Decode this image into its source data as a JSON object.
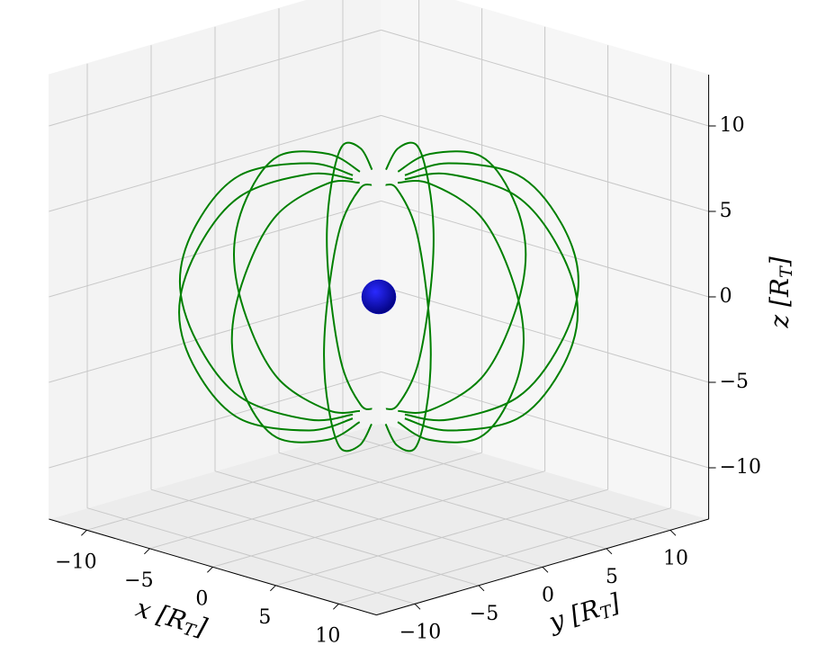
{
  "chart_data": {
    "type": "line3d",
    "xlabel": [
      "x [R",
      "T",
      "]"
    ],
    "ylabel": [
      "y [R",
      "T",
      "]"
    ],
    "zlabel": [
      "z [R",
      "T",
      "]"
    ],
    "xlim": [
      -13,
      13
    ],
    "ylim": [
      -13,
      13
    ],
    "zlim": [
      -13,
      13
    ],
    "xticks": [
      {
        "value": -10,
        "label": "−10"
      },
      {
        "value": -5,
        "label": "−5"
      },
      0,
      5,
      10
    ],
    "yticks": [
      {
        "value": -10,
        "label": "−10"
      },
      {
        "value": -5,
        "label": "−5"
      },
      0,
      5,
      10
    ],
    "zticks": [
      {
        "value": -10,
        "label": "−10"
      },
      {
        "value": -5,
        "label": "−5"
      },
      0,
      5,
      10
    ],
    "grid": true,
    "line_color": "#008000",
    "sphere": {
      "center": [
        0,
        0,
        0
      ],
      "radius": 1,
      "color": "#0000c8"
    },
    "series": [
      {
        "x": [
          1.5,
          4,
          8,
          10.5,
          11.5,
          10.5,
          8,
          4,
          1.5
        ],
        "y": [
          0,
          0,
          0,
          0,
          0,
          0,
          0,
          0,
          0
        ],
        "z": [
          -7,
          -7.5,
          -6.5,
          -3.5,
          0,
          3.5,
          6.5,
          7.5,
          7
        ]
      },
      {
        "x": [
          1.3,
          3.46,
          6.93,
          9.09,
          9.96,
          9.09,
          6.93,
          3.46,
          1.3
        ],
        "y": [
          0.75,
          2,
          4,
          5.25,
          5.75,
          5.25,
          4,
          2,
          0.75
        ],
        "z": [
          -7,
          -7.5,
          -6.5,
          -3.5,
          0,
          3.5,
          6.5,
          7.5,
          7
        ]
      },
      {
        "x": [
          0.75,
          2,
          4,
          5.25,
          5.75,
          5.25,
          4,
          2,
          0.75
        ],
        "y": [
          1.3,
          3.46,
          6.93,
          9.09,
          9.96,
          9.09,
          6.93,
          3.46,
          1.3
        ],
        "z": [
          -7,
          -7.5,
          -6.5,
          -3.5,
          0,
          3.5,
          6.5,
          7.5,
          7
        ]
      },
      {
        "x": [
          0,
          0,
          0,
          0,
          0,
          0,
          0,
          0,
          0
        ],
        "y": [
          1.5,
          4,
          8,
          10.5,
          11.5,
          10.5,
          8,
          4,
          1.5
        ],
        "z": [
          -7,
          -7.5,
          -6.5,
          -3.5,
          0,
          3.5,
          6.5,
          7.5,
          7
        ]
      },
      {
        "x": [
          -0.75,
          -2,
          -4,
          -5.25,
          -5.75,
          -5.25,
          -4,
          -2,
          -0.75
        ],
        "y": [
          1.3,
          3.46,
          6.93,
          9.09,
          9.96,
          9.09,
          6.93,
          3.46,
          1.3
        ],
        "z": [
          -7,
          -7.5,
          -6.5,
          -3.5,
          0,
          3.5,
          6.5,
          7.5,
          7
        ]
      },
      {
        "x": [
          -1.3,
          -3.46,
          -6.93,
          -9.09,
          -9.96,
          -9.09,
          -6.93,
          -3.46,
          -1.3
        ],
        "y": [
          0.75,
          2,
          4,
          5.25,
          5.75,
          5.25,
          4,
          2,
          0.75
        ],
        "z": [
          -7,
          -7.5,
          -6.5,
          -3.5,
          0,
          3.5,
          6.5,
          7.5,
          7
        ]
      },
      {
        "x": [
          -1.5,
          -4,
          -8,
          -10.5,
          -11.5,
          -10.5,
          -8,
          -4,
          -1.5
        ],
        "y": [
          0,
          0,
          0,
          0,
          0,
          0,
          0,
          0,
          0
        ],
        "z": [
          -7,
          -7.5,
          -6.5,
          -3.5,
          0,
          3.5,
          6.5,
          7.5,
          7
        ]
      },
      {
        "x": [
          -1.3,
          -3.46,
          -6.93,
          -9.09,
          -9.96,
          -9.09,
          -6.93,
          -3.46,
          -1.3
        ],
        "y": [
          -0.75,
          -2,
          -4,
          -5.25,
          -5.75,
          -5.25,
          -4,
          -2,
          -0.75
        ],
        "z": [
          -7,
          -7.5,
          -6.5,
          -3.5,
          0,
          3.5,
          6.5,
          7.5,
          7
        ]
      },
      {
        "x": [
          -0.75,
          -2,
          -4,
          -5.25,
          -5.75,
          -5.25,
          -4,
          -2,
          -0.75
        ],
        "y": [
          -1.3,
          -3.46,
          -6.93,
          -9.09,
          -9.96,
          -9.09,
          -6.93,
          -3.46,
          -1.3
        ],
        "z": [
          -7,
          -7.5,
          -6.5,
          -3.5,
          0,
          3.5,
          6.5,
          7.5,
          7
        ]
      },
      {
        "x": [
          0,
          0,
          0,
          0,
          0,
          0,
          0,
          0,
          0
        ],
        "y": [
          -1.5,
          -4,
          -8,
          -10.5,
          -11.5,
          -10.5,
          -8,
          -4,
          -1.5
        ],
        "z": [
          -7,
          -7.5,
          -6.5,
          -3.5,
          0,
          3.5,
          6.5,
          7.5,
          7
        ]
      },
      {
        "x": [
          0.75,
          2,
          4,
          5.25,
          5.75,
          5.25,
          4,
          2,
          0.75
        ],
        "y": [
          -1.3,
          -3.46,
          -6.93,
          -9.09,
          -9.96,
          -9.09,
          -6.93,
          -3.46,
          -1.3
        ],
        "z": [
          -7,
          -7.5,
          -6.5,
          -3.5,
          0,
          3.5,
          6.5,
          7.5,
          7
        ]
      },
      {
        "x": [
          1.3,
          3.46,
          6.93,
          9.09,
          9.96,
          9.09,
          6.93,
          3.46,
          1.3
        ],
        "y": [
          -0.75,
          -2,
          -4,
          -5.25,
          -5.75,
          -5.25,
          -4,
          -2,
          -0.75
        ],
        "z": [
          -7,
          -7.5,
          -6.5,
          -3.5,
          0,
          3.5,
          6.5,
          7.5,
          7
        ]
      }
    ]
  }
}
